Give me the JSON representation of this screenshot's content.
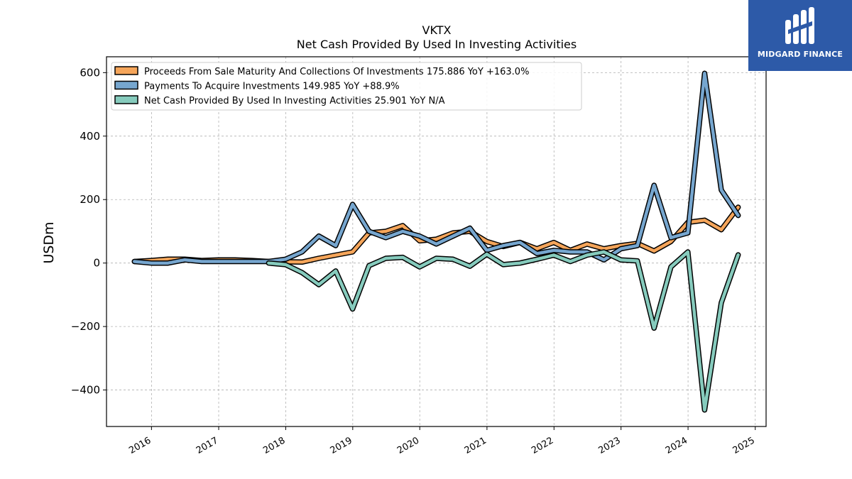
{
  "chart_data": {
    "type": "line",
    "title": "VKTX",
    "subtitle": "Net Cash Provided By Used In Investing Activities",
    "ylabel": "USDm",
    "xlabel": "",
    "ylim": [
      -515,
      650
    ],
    "xlim": [
      "2015-05-01",
      "2025-03-01"
    ],
    "yticks": [
      -400,
      -200,
      0,
      200,
      400,
      600
    ],
    "ytick_labels": [
      "−400",
      "−200",
      "0",
      "200",
      "400",
      "600"
    ],
    "xticks": [
      "2016-01-01",
      "2017-01-01",
      "2018-01-01",
      "2019-01-01",
      "2020-01-01",
      "2021-01-01",
      "2022-01-01",
      "2023-01-01",
      "2024-01-01",
      "2025-01-01"
    ],
    "xtick_labels": [
      "2016",
      "2017",
      "2018",
      "2019",
      "2020",
      "2021",
      "2022",
      "2023",
      "2024",
      "2025"
    ],
    "grid": true,
    "legend_position": "top-left",
    "series": [
      {
        "name": "Proceeds From Sale Maturity And Collections Of Investments",
        "legend": "Proceeds From Sale Maturity And Collections Of Investments  175.886 YoY +163.0%",
        "color": "#f5a55a",
        "points": [
          [
            "2015-09-30",
            5
          ],
          [
            "2015-12-31",
            8
          ],
          [
            "2016-03-31",
            12
          ],
          [
            "2016-06-30",
            12
          ],
          [
            "2016-09-30",
            8
          ],
          [
            "2016-12-31",
            10
          ],
          [
            "2017-03-31",
            10
          ],
          [
            "2017-06-30",
            8
          ],
          [
            "2017-09-30",
            5
          ],
          [
            "2017-12-31",
            4
          ],
          [
            "2018-03-31",
            3
          ],
          [
            "2018-06-30",
            15
          ],
          [
            "2018-09-30",
            25
          ],
          [
            "2018-12-31",
            35
          ],
          [
            "2019-03-31",
            95
          ],
          [
            "2019-06-30",
            100
          ],
          [
            "2019-09-30",
            118
          ],
          [
            "2019-12-31",
            70
          ],
          [
            "2020-03-31",
            75
          ],
          [
            "2020-06-30",
            95
          ],
          [
            "2020-09-30",
            100
          ],
          [
            "2020-12-31",
            68
          ],
          [
            "2021-03-31",
            52
          ],
          [
            "2021-06-30",
            65
          ],
          [
            "2021-09-30",
            45
          ],
          [
            "2021-12-31",
            65
          ],
          [
            "2022-03-31",
            40
          ],
          [
            "2022-06-30",
            60
          ],
          [
            "2022-09-30",
            45
          ],
          [
            "2022-12-31",
            55
          ],
          [
            "2023-03-31",
            62
          ],
          [
            "2023-06-30",
            38
          ],
          [
            "2023-09-30",
            68
          ],
          [
            "2023-12-31",
            128
          ],
          [
            "2024-03-31",
            135
          ],
          [
            "2024-06-30",
            105
          ],
          [
            "2024-09-30",
            176
          ]
        ]
      },
      {
        "name": "Payments To Acquire Investments",
        "legend": "Payments To Acquire Investments  149.985 YoY +88.9%",
        "color": "#76a6cf",
        "points": [
          [
            "2015-09-30",
            5
          ],
          [
            "2015-12-31",
            0
          ],
          [
            "2016-03-31",
            0
          ],
          [
            "2016-06-30",
            10
          ],
          [
            "2016-09-30",
            5
          ],
          [
            "2016-12-31",
            5
          ],
          [
            "2017-03-31",
            5
          ],
          [
            "2017-06-30",
            5
          ],
          [
            "2017-09-30",
            5
          ],
          [
            "2017-12-31",
            12
          ],
          [
            "2018-03-31",
            35
          ],
          [
            "2018-06-30",
            85
          ],
          [
            "2018-09-30",
            55
          ],
          [
            "2018-12-31",
            185
          ],
          [
            "2019-03-31",
            100
          ],
          [
            "2019-06-30",
            80
          ],
          [
            "2019-09-30",
            100
          ],
          [
            "2019-12-31",
            85
          ],
          [
            "2020-03-31",
            60
          ],
          [
            "2020-06-30",
            85
          ],
          [
            "2020-09-30",
            110
          ],
          [
            "2020-12-31",
            40
          ],
          [
            "2021-03-31",
            55
          ],
          [
            "2021-06-30",
            65
          ],
          [
            "2021-09-30",
            30
          ],
          [
            "2021-12-31",
            40
          ],
          [
            "2022-03-31",
            35
          ],
          [
            "2022-06-30",
            35
          ],
          [
            "2022-09-30",
            10
          ],
          [
            "2022-12-31",
            45
          ],
          [
            "2023-03-31",
            55
          ],
          [
            "2023-06-30",
            245
          ],
          [
            "2023-09-30",
            80
          ],
          [
            "2023-12-31",
            95
          ],
          [
            "2024-03-31",
            598
          ],
          [
            "2024-06-30",
            230
          ],
          [
            "2024-09-30",
            150
          ]
        ]
      },
      {
        "name": "Net Cash Provided By Used In Investing Activities",
        "legend": "Net Cash Provided By Used In Investing Activities  25.901 YoY N/A",
        "color": "#86cbbd",
        "points": [
          [
            "2017-09-30",
            0
          ],
          [
            "2017-12-31",
            -5
          ],
          [
            "2018-03-31",
            -30
          ],
          [
            "2018-06-30",
            -68
          ],
          [
            "2018-09-30",
            -25
          ],
          [
            "2018-12-31",
            -145
          ],
          [
            "2019-03-31",
            -8
          ],
          [
            "2019-06-30",
            15
          ],
          [
            "2019-09-30",
            18
          ],
          [
            "2019-12-31",
            -12
          ],
          [
            "2020-03-31",
            15
          ],
          [
            "2020-06-30",
            12
          ],
          [
            "2020-09-30",
            -10
          ],
          [
            "2020-12-31",
            28
          ],
          [
            "2021-03-31",
            -5
          ],
          [
            "2021-06-30",
            0
          ],
          [
            "2021-09-30",
            12
          ],
          [
            "2021-12-31",
            25
          ],
          [
            "2022-03-31",
            5
          ],
          [
            "2022-06-30",
            25
          ],
          [
            "2022-09-30",
            35
          ],
          [
            "2022-12-31",
            10
          ],
          [
            "2023-03-31",
            7
          ],
          [
            "2023-06-30",
            -205
          ],
          [
            "2023-09-30",
            -12
          ],
          [
            "2023-12-31",
            35
          ],
          [
            "2024-03-31",
            -463
          ],
          [
            "2024-06-30",
            -125
          ],
          [
            "2024-09-30",
            26
          ]
        ]
      }
    ]
  },
  "logo": {
    "text": "MIDGARD FINANCE",
    "color": "#2d5aa8"
  }
}
